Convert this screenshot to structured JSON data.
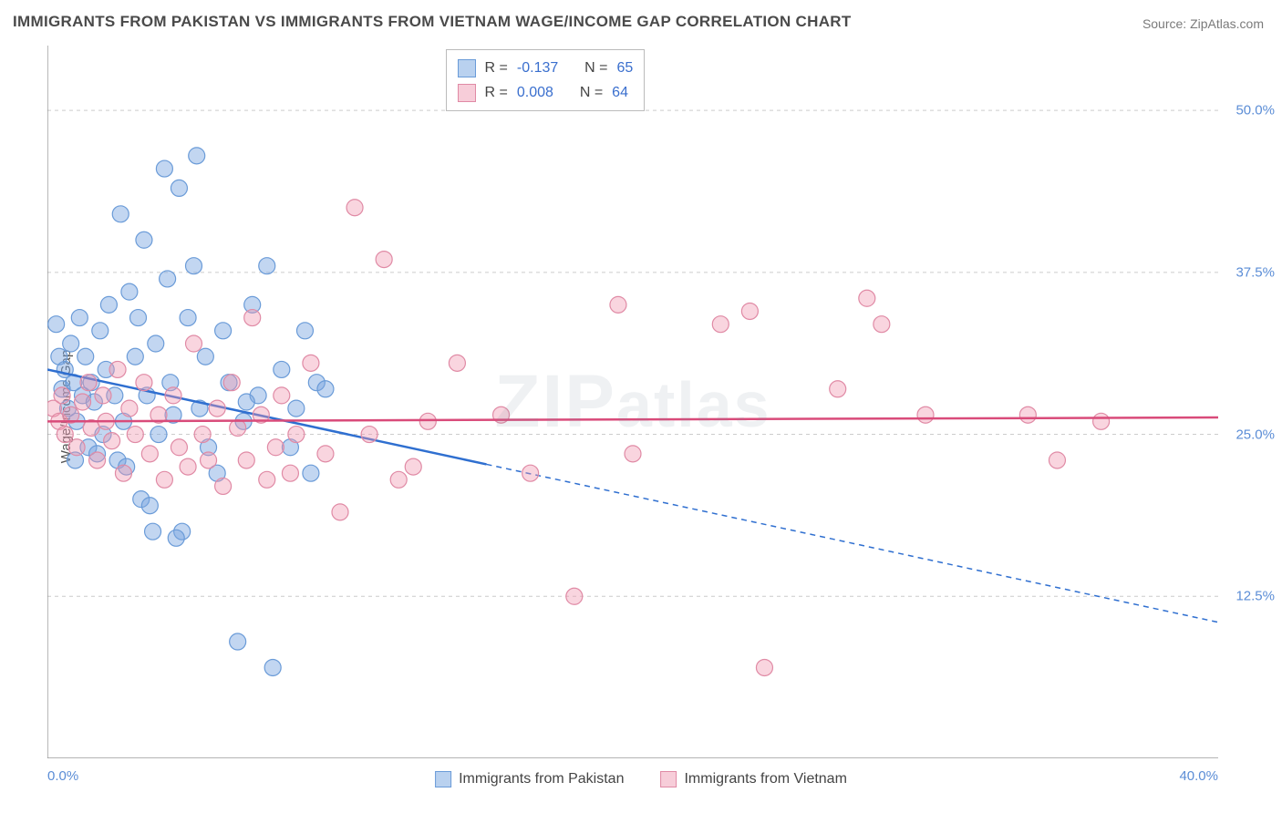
{
  "title": "IMMIGRANTS FROM PAKISTAN VS IMMIGRANTS FROM VIETNAM WAGE/INCOME GAP CORRELATION CHART",
  "source": "Source: ZipAtlas.com",
  "watermark": "ZIPatlas",
  "ylabel": "Wage/Income Gap",
  "chart": {
    "type": "scatter",
    "xlim": [
      0,
      40
    ],
    "ylim": [
      0,
      55
    ],
    "xtick_positions": [
      0,
      5,
      10,
      15,
      20,
      25,
      30,
      35,
      40
    ],
    "xtick_labels": {
      "0": "0.0%",
      "40": "40.0%"
    },
    "ytick_positions": [
      12.5,
      25.0,
      37.5,
      50.0
    ],
    "ytick_labels": [
      "12.5%",
      "25.0%",
      "37.5%",
      "50.0%"
    ],
    "grid_color": "#cccccc",
    "grid_dash": "4,4",
    "axis_color": "#888888",
    "background_color": "#ffffff",
    "marker_radius": 9,
    "marker_stroke_width": 1.2,
    "line_width": 2.5,
    "dash_pattern": "6,5"
  },
  "series": [
    {
      "key": "pakistan",
      "label": "Immigrants from Pakistan",
      "fill": "rgba(120,165,225,0.45)",
      "stroke": "#6a9bd8",
      "line_color": "#2f6fd0",
      "swatch_fill": "#b9d1ef",
      "swatch_stroke": "#6a9bd8",
      "R": "-0.137",
      "N": "65",
      "trend": {
        "y_at_x0": 30.0,
        "y_at_xmax": 10.5,
        "solid_until_x": 15
      },
      "points": [
        [
          0.3,
          33.5
        ],
        [
          0.4,
          31.0
        ],
        [
          0.5,
          28.5
        ],
        [
          0.6,
          30.0
        ],
        [
          0.7,
          27.0
        ],
        [
          0.8,
          32.0
        ],
        [
          0.9,
          29.0
        ],
        [
          1.0,
          26.0
        ],
        [
          1.1,
          34.0
        ],
        [
          1.2,
          28.0
        ],
        [
          1.3,
          31.0
        ],
        [
          1.4,
          24.0
        ],
        [
          1.5,
          29.0
        ],
        [
          1.6,
          27.5
        ],
        [
          1.8,
          33.0
        ],
        [
          1.9,
          25.0
        ],
        [
          2.0,
          30.0
        ],
        [
          2.1,
          35.0
        ],
        [
          2.3,
          28.0
        ],
        [
          2.4,
          23.0
        ],
        [
          2.5,
          42.0
        ],
        [
          2.6,
          26.0
        ],
        [
          2.8,
          36.0
        ],
        [
          3.0,
          31.0
        ],
        [
          3.1,
          34.0
        ],
        [
          3.2,
          20.0
        ],
        [
          3.3,
          40.0
        ],
        [
          3.4,
          28.0
        ],
        [
          3.5,
          19.5
        ],
        [
          3.7,
          32.0
        ],
        [
          3.8,
          25.0
        ],
        [
          4.0,
          45.5
        ],
        [
          4.1,
          37.0
        ],
        [
          4.2,
          29.0
        ],
        [
          4.3,
          26.5
        ],
        [
          4.5,
          44.0
        ],
        [
          4.6,
          17.5
        ],
        [
          4.8,
          34.0
        ],
        [
          5.0,
          38.0
        ],
        [
          5.1,
          46.5
        ],
        [
          5.2,
          27.0
        ],
        [
          5.4,
          31.0
        ],
        [
          5.5,
          24.0
        ],
        [
          5.8,
          22.0
        ],
        [
          6.0,
          33.0
        ],
        [
          6.2,
          29.0
        ],
        [
          6.5,
          9.0
        ],
        [
          6.7,
          26.0
        ],
        [
          7.0,
          35.0
        ],
        [
          7.2,
          28.0
        ],
        [
          7.5,
          38.0
        ],
        [
          7.7,
          7.0
        ],
        [
          8.0,
          30.0
        ],
        [
          8.3,
          24.0
        ],
        [
          8.5,
          27.0
        ],
        [
          8.8,
          33.0
        ],
        [
          9.0,
          22.0
        ],
        [
          9.2,
          29.0
        ],
        [
          9.5,
          28.5
        ],
        [
          4.4,
          17.0
        ],
        [
          3.6,
          17.5
        ],
        [
          2.7,
          22.5
        ],
        [
          1.7,
          23.5
        ],
        [
          0.95,
          23.0
        ],
        [
          6.8,
          27.5
        ]
      ]
    },
    {
      "key": "vietnam",
      "label": "Immigrants from Vietnam",
      "fill": "rgba(240,150,175,0.4)",
      "stroke": "#e08aa5",
      "line_color": "#d94b7a",
      "swatch_fill": "#f7cdd9",
      "swatch_stroke": "#e08aa5",
      "R": "0.008",
      "N": "64",
      "trend": {
        "y_at_x0": 26.0,
        "y_at_xmax": 26.3,
        "solid_until_x": 40
      },
      "points": [
        [
          0.2,
          27.0
        ],
        [
          0.4,
          26.0
        ],
        [
          0.5,
          28.0
        ],
        [
          0.6,
          25.0
        ],
        [
          0.8,
          26.5
        ],
        [
          1.0,
          24.0
        ],
        [
          1.2,
          27.5
        ],
        [
          1.4,
          29.0
        ],
        [
          1.5,
          25.5
        ],
        [
          1.7,
          23.0
        ],
        [
          1.9,
          28.0
        ],
        [
          2.0,
          26.0
        ],
        [
          2.2,
          24.5
        ],
        [
          2.4,
          30.0
        ],
        [
          2.6,
          22.0
        ],
        [
          2.8,
          27.0
        ],
        [
          3.0,
          25.0
        ],
        [
          3.3,
          29.0
        ],
        [
          3.5,
          23.5
        ],
        [
          3.8,
          26.5
        ],
        [
          4.0,
          21.5
        ],
        [
          4.3,
          28.0
        ],
        [
          4.5,
          24.0
        ],
        [
          4.8,
          22.5
        ],
        [
          5.0,
          32.0
        ],
        [
          5.3,
          25.0
        ],
        [
          5.5,
          23.0
        ],
        [
          5.8,
          27.0
        ],
        [
          6.0,
          21.0
        ],
        [
          6.3,
          29.0
        ],
        [
          6.5,
          25.5
        ],
        [
          6.8,
          23.0
        ],
        [
          7.0,
          34.0
        ],
        [
          7.3,
          26.5
        ],
        [
          7.5,
          21.5
        ],
        [
          7.8,
          24.0
        ],
        [
          8.0,
          28.0
        ],
        [
          8.3,
          22.0
        ],
        [
          8.5,
          25.0
        ],
        [
          9.0,
          30.5
        ],
        [
          9.5,
          23.5
        ],
        [
          10.0,
          19.0
        ],
        [
          10.5,
          42.5
        ],
        [
          11.0,
          25.0
        ],
        [
          11.5,
          38.5
        ],
        [
          12.0,
          21.5
        ],
        [
          12.5,
          22.5
        ],
        [
          13.0,
          26.0
        ],
        [
          14.0,
          30.5
        ],
        [
          15.5,
          26.5
        ],
        [
          16.5,
          22.0
        ],
        [
          18.0,
          12.5
        ],
        [
          19.5,
          35.0
        ],
        [
          20.0,
          23.5
        ],
        [
          23.0,
          33.5
        ],
        [
          24.0,
          34.5
        ],
        [
          24.5,
          7.0
        ],
        [
          27.0,
          28.5
        ],
        [
          28.0,
          35.5
        ],
        [
          28.5,
          33.5
        ],
        [
          30.0,
          26.5
        ],
        [
          33.5,
          26.5
        ],
        [
          34.5,
          23.0
        ],
        [
          36.0,
          26.0
        ]
      ]
    }
  ],
  "legend_stats": {
    "R_label": "R =",
    "N_label": "N ="
  },
  "bottom_legend_items": [
    {
      "series_key": "pakistan"
    },
    {
      "series_key": "vietnam"
    }
  ]
}
